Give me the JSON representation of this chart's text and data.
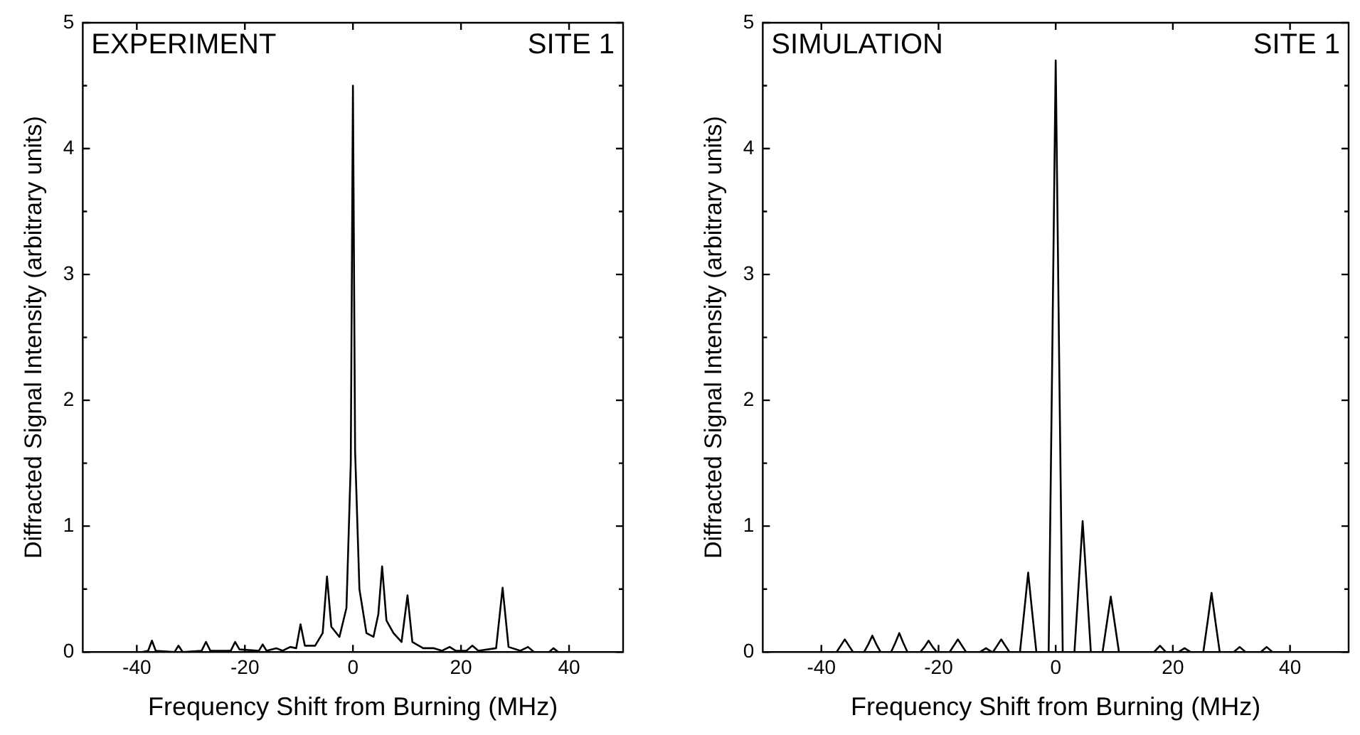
{
  "chart_data": [
    {
      "type": "line",
      "xlabel": "Frequency Shift from Burning (MHz)",
      "ylabel": "Diffracted Signal Intensity (arbitrary units)",
      "annotations": [
        "EXPERIMENT",
        "SITE 1"
      ],
      "xlim": [
        -50,
        50
      ],
      "xticks": [
        -40,
        -20,
        0,
        20,
        40
      ],
      "ylim": [
        0,
        5
      ],
      "yticks": [
        0,
        {
          "value": 0.5,
          "label": null
        },
        1,
        {
          "value": 1.5,
          "label": null
        },
        2,
        {
          "value": 2.5,
          "label": null
        },
        3,
        {
          "value": 3.5,
          "label": null
        },
        4,
        {
          "value": 4.5,
          "label": null
        },
        5
      ],
      "grid": false,
      "series": [
        {
          "color": "#000000",
          "x": [
            -50,
            -39,
            -37.9,
            -37.2,
            -36.5,
            -33,
            -32.3,
            -31.5,
            -28,
            -27.2,
            -26.4,
            -22.6,
            -21.8,
            -21,
            -17.4,
            -16.7,
            -16,
            -14.2,
            -13,
            -11.6,
            -10.5,
            -9.7,
            -8.9,
            -7,
            -5.6,
            -4.8,
            -4,
            -2.5,
            -1.2,
            -0.4,
            0,
            0.4,
            1.2,
            2.5,
            3.8,
            4.7,
            5.4,
            6.2,
            7.5,
            9,
            10.1,
            11,
            13,
            15,
            16.5,
            17.9,
            19,
            21,
            22.1,
            23.2,
            26.5,
            27.7,
            28.8,
            31,
            32.4,
            33.5,
            36.3,
            37.1,
            38,
            50
          ],
          "values": [
            0,
            0,
            0.01,
            0.09,
            0.01,
            0,
            0.05,
            0,
            0.01,
            0.08,
            0.01,
            0.01,
            0.08,
            0.02,
            0.01,
            0.06,
            0.01,
            0.03,
            0.01,
            0.04,
            0.03,
            0.22,
            0.05,
            0.05,
            0.15,
            0.6,
            0.2,
            0.12,
            0.35,
            1.5,
            4.5,
            1.6,
            0.5,
            0.15,
            0.12,
            0.3,
            0.68,
            0.25,
            0.15,
            0.08,
            0.45,
            0.08,
            0.03,
            0.03,
            0.01,
            0.04,
            0.01,
            0.01,
            0.05,
            0.01,
            0.03,
            0.51,
            0.04,
            0.01,
            0.04,
            0,
            0,
            0.03,
            0,
            0
          ]
        }
      ]
    },
    {
      "type": "line",
      "xlabel": "Frequency Shift from Burning (MHz)",
      "ylabel": "Diffracted Signal Intensity (arbitrary units)",
      "annotations": [
        "SIMULATION",
        "SITE 1"
      ],
      "xlim": [
        -50,
        50
      ],
      "xticks": [
        -40,
        -20,
        0,
        20,
        40
      ],
      "ylim": [
        0,
        5
      ],
      "yticks": [
        0,
        {
          "value": 0.5,
          "label": null
        },
        1,
        {
          "value": 1.5,
          "label": null
        },
        2,
        {
          "value": 2.5,
          "label": null
        },
        3,
        {
          "value": 3.5,
          "label": null
        },
        4,
        {
          "value": 4.5,
          "label": null
        },
        5
      ],
      "grid": false,
      "series": [
        {
          "color": "#000000",
          "x": [
            -50,
            -37.4,
            -36.7,
            -36,
            -35.3,
            -34.6,
            -32.7,
            -32,
            -31.3,
            -30.6,
            -29.9,
            -28.1,
            -27.4,
            -26.7,
            -26,
            -25.3,
            -23.1,
            -22.4,
            -21.7,
            -21,
            -20.3,
            -18.1,
            -17.4,
            -16.7,
            -16,
            -15.3,
            -12.9,
            -11.9,
            -10.9,
            -10.7,
            -10,
            -9.3,
            -8.6,
            -7.9,
            -6.1,
            -5.4,
            -4.7,
            -4,
            -3.3,
            -1.2,
            -0.6,
            0,
            0.6,
            1.2,
            3.2,
            3.9,
            4.6,
            5.3,
            6,
            8,
            8.7,
            9.4,
            10.1,
            10.8,
            16.8,
            17.8,
            18.8,
            21,
            22,
            23,
            25.2,
            25.9,
            26.6,
            27.3,
            28,
            30.4,
            31.4,
            32.4,
            35,
            36,
            37,
            50
          ],
          "values": [
            0,
            0,
            0.05,
            0.1,
            0.05,
            0,
            0,
            0.06,
            0.13,
            0.06,
            0,
            0,
            0.07,
            0.15,
            0.07,
            0,
            0,
            0.04,
            0.09,
            0.04,
            0,
            0,
            0.05,
            0.1,
            0.05,
            0,
            0,
            0.03,
            0,
            0,
            0.05,
            0.1,
            0.05,
            0,
            0,
            0.31,
            0.63,
            0.31,
            0,
            0,
            2.3,
            4.7,
            2.3,
            0,
            0,
            0.52,
            1.04,
            0.52,
            0,
            0,
            0.22,
            0.44,
            0.22,
            0,
            0,
            0.05,
            0,
            0,
            0.03,
            0,
            0,
            0.23,
            0.47,
            0.23,
            0,
            0,
            0.04,
            0,
            0,
            0.04,
            0,
            0
          ]
        }
      ]
    }
  ]
}
